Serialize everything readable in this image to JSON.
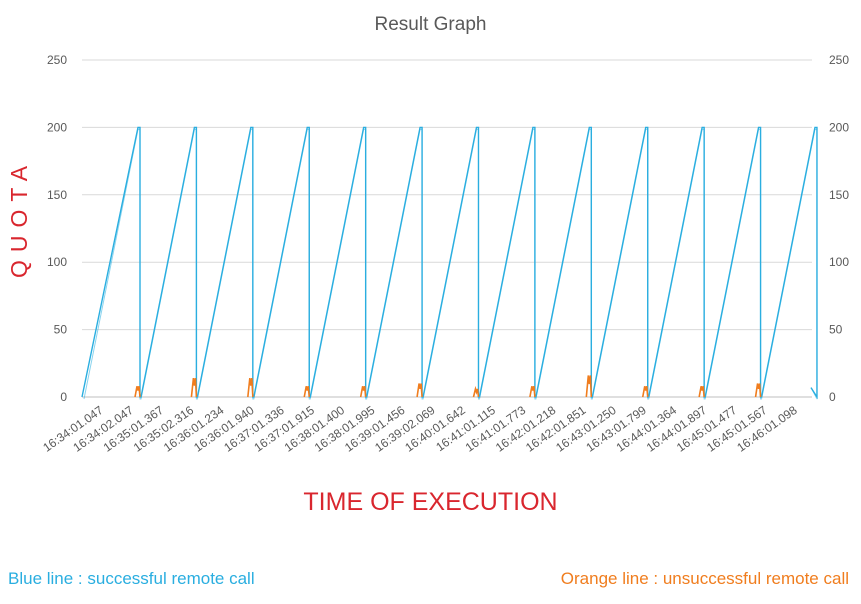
{
  "chart_data": {
    "type": "line",
    "title": "Result Graph",
    "ylabel": "QUOTA",
    "xlabel": "TIME OF EXECUTION",
    "ylim": [
      0,
      250
    ],
    "y_ticks": [
      0,
      50,
      100,
      150,
      200,
      250
    ],
    "secondary_y_ticks": [
      0,
      50,
      100,
      150,
      200,
      250
    ],
    "grid": true,
    "x_categories": [
      "16:34:01.047",
      "16:34:02.047",
      "16:35:01.367",
      "16:35:02.316",
      "16:36:01.234",
      "16:36:01.940",
      "16:37:01.336",
      "16:37:01.915",
      "16:38:01.400",
      "16:38:01.995",
      "16:39:01.456",
      "16:39:02.069",
      "16:40:01.642",
      "16:41:01.115",
      "16:41:01.773",
      "16:42:01.218",
      "16:42:01.851",
      "16:43:01.250",
      "16:43:01.799",
      "16:44:01.364",
      "16:44:01.897",
      "16:45:01.477",
      "16:45:01.567",
      "16:46:01.098"
    ],
    "series": [
      {
        "name": "successful remote call",
        "color": "#2aaee0",
        "cycles": 13,
        "ramp_start": 0,
        "ramp_peak": 200,
        "final_value": 7
      },
      {
        "name": "unsuccessful remote call",
        "color": "#f07d1e",
        "burst_peaks": [
          8,
          14,
          14,
          8,
          8,
          10,
          6,
          8,
          16,
          8,
          8,
          10
        ]
      }
    ],
    "notes": {
      "blue": "Blue line : successful remote call",
      "orange": "Orange line : unsuccessful remote call"
    }
  }
}
